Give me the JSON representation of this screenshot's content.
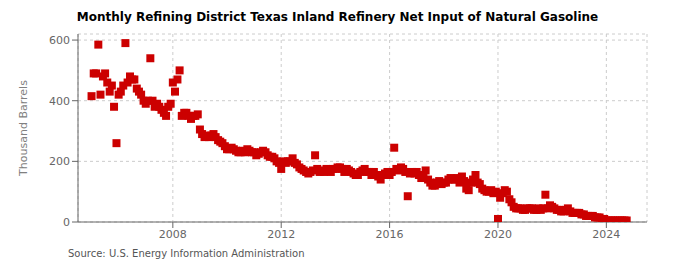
{
  "chart_data": {
    "type": "scatter",
    "title": "Monthly Refining District Texas Inland Refinery Net Input of Natural Gasoline",
    "ylabel": "Thousand Barrels",
    "annotations": [
      "Source: U.S. Energy Information Administration"
    ],
    "color": "#cc0000",
    "marker": "square",
    "grid": true,
    "xlim": [
      2004.5,
      2025.5
    ],
    "ylim": [
      0,
      620
    ],
    "xticks": [
      2008,
      2012,
      2016,
      2020,
      2024
    ],
    "yticks": [
      0,
      200,
      400,
      600
    ],
    "x": [
      2005.0,
      2005.08,
      2005.17,
      2005.25,
      2005.33,
      2005.42,
      2005.5,
      2005.58,
      2005.67,
      2005.75,
      2005.83,
      2005.92,
      2006.0,
      2006.08,
      2006.17,
      2006.25,
      2006.33,
      2006.42,
      2006.5,
      2006.58,
      2006.67,
      2006.75,
      2006.83,
      2006.92,
      2007.0,
      2007.08,
      2007.17,
      2007.25,
      2007.33,
      2007.42,
      2007.5,
      2007.58,
      2007.67,
      2007.75,
      2007.83,
      2007.92,
      2008.0,
      2008.08,
      2008.17,
      2008.25,
      2008.33,
      2008.42,
      2008.5,
      2008.58,
      2008.67,
      2008.75,
      2008.83,
      2008.92,
      2009.0,
      2009.08,
      2009.17,
      2009.25,
      2009.33,
      2009.42,
      2009.5,
      2009.58,
      2009.67,
      2009.75,
      2009.83,
      2009.92,
      2010.0,
      2010.08,
      2010.17,
      2010.25,
      2010.33,
      2010.42,
      2010.5,
      2010.58,
      2010.67,
      2010.75,
      2010.83,
      2010.92,
      2011.0,
      2011.08,
      2011.17,
      2011.25,
      2011.33,
      2011.42,
      2011.5,
      2011.58,
      2011.67,
      2011.75,
      2011.83,
      2011.92,
      2012.0,
      2012.08,
      2012.17,
      2012.25,
      2012.33,
      2012.42,
      2012.5,
      2012.58,
      2012.67,
      2012.75,
      2012.83,
      2012.92,
      2013.0,
      2013.08,
      2013.17,
      2013.25,
      2013.33,
      2013.42,
      2013.5,
      2013.58,
      2013.67,
      2013.75,
      2013.83,
      2013.92,
      2014.0,
      2014.08,
      2014.17,
      2014.25,
      2014.33,
      2014.42,
      2014.5,
      2014.58,
      2014.67,
      2014.75,
      2014.83,
      2014.92,
      2015.0,
      2015.08,
      2015.17,
      2015.25,
      2015.33,
      2015.42,
      2015.5,
      2015.58,
      2015.67,
      2015.75,
      2015.83,
      2015.92,
      2016.0,
      2016.08,
      2016.17,
      2016.25,
      2016.33,
      2016.42,
      2016.5,
      2016.58,
      2016.67,
      2016.75,
      2016.83,
      2016.92,
      2017.0,
      2017.08,
      2017.17,
      2017.25,
      2017.33,
      2017.42,
      2017.5,
      2017.58,
      2017.67,
      2017.75,
      2017.83,
      2017.92,
      2018.0,
      2018.08,
      2018.17,
      2018.25,
      2018.33,
      2018.42,
      2018.5,
      2018.58,
      2018.67,
      2018.75,
      2018.83,
      2018.92,
      2019.0,
      2019.08,
      2019.17,
      2019.25,
      2019.33,
      2019.42,
      2019.5,
      2019.58,
      2019.67,
      2019.75,
      2019.83,
      2019.92,
      2020.0,
      2020.08,
      2020.17,
      2020.25,
      2020.33,
      2020.42,
      2020.5,
      2020.58,
      2020.67,
      2020.75,
      2020.83,
      2020.92,
      2021.0,
      2021.08,
      2021.17,
      2021.25,
      2021.33,
      2021.42,
      2021.5,
      2021.58,
      2021.67,
      2021.75,
      2021.83,
      2021.92,
      2022.0,
      2022.08,
      2022.17,
      2022.25,
      2022.33,
      2022.42,
      2022.5,
      2022.58,
      2022.67,
      2022.75,
      2022.83,
      2022.92,
      2023.0,
      2023.08,
      2023.17,
      2023.25,
      2023.33,
      2023.42,
      2023.5,
      2023.58,
      2023.67,
      2023.75,
      2023.83,
      2023.92,
      2024.0,
      2024.08,
      2024.17,
      2024.25,
      2024.33,
      2024.42,
      2024.5,
      2024.58,
      2024.67,
      2024.75
    ],
    "values": [
      415,
      490,
      490,
      585,
      420,
      480,
      490,
      460,
      430,
      450,
      380,
      260,
      420,
      430,
      450,
      590,
      460,
      480,
      470,
      470,
      440,
      430,
      420,
      400,
      390,
      400,
      540,
      400,
      380,
      390,
      380,
      370,
      360,
      350,
      380,
      390,
      460,
      430,
      470,
      500,
      350,
      360,
      360,
      350,
      340,
      350,
      350,
      355,
      305,
      290,
      280,
      285,
      280,
      285,
      290,
      280,
      270,
      265,
      260,
      250,
      240,
      240,
      245,
      240,
      235,
      230,
      230,
      235,
      230,
      240,
      235,
      230,
      230,
      220,
      225,
      230,
      235,
      230,
      220,
      215,
      215,
      210,
      200,
      195,
      175,
      200,
      195,
      200,
      200,
      210,
      195,
      190,
      180,
      175,
      170,
      165,
      160,
      165,
      170,
      220,
      175,
      165,
      170,
      165,
      175,
      170,
      165,
      175,
      175,
      180,
      180,
      175,
      165,
      175,
      170,
      165,
      160,
      155,
      155,
      165,
      170,
      175,
      165,
      165,
      155,
      165,
      155,
      150,
      140,
      155,
      160,
      165,
      155,
      165,
      245,
      175,
      170,
      180,
      175,
      165,
      85,
      160,
      165,
      160,
      165,
      155,
      145,
      150,
      170,
      140,
      130,
      120,
      120,
      130,
      135,
      125,
      130,
      130,
      140,
      145,
      140,
      140,
      145,
      130,
      150,
      135,
      110,
      105,
      130,
      140,
      155,
      130,
      125,
      110,
      105,
      100,
      100,
      105,
      95,
      100,
      10,
      80,
      95,
      105,
      100,
      75,
      65,
      50,
      45,
      45,
      45,
      40,
      40,
      45,
      45,
      45,
      40,
      40,
      45,
      40,
      45,
      90,
      45,
      55,
      50,
      45,
      40,
      40,
      35,
      35,
      40,
      45,
      35,
      30,
      30,
      30,
      30,
      25,
      25,
      20,
      20,
      20,
      20,
      15,
      15,
      15,
      10,
      10,
      5,
      5,
      5,
      5,
      5,
      5,
      5,
      5,
      5,
      5
    ]
  }
}
